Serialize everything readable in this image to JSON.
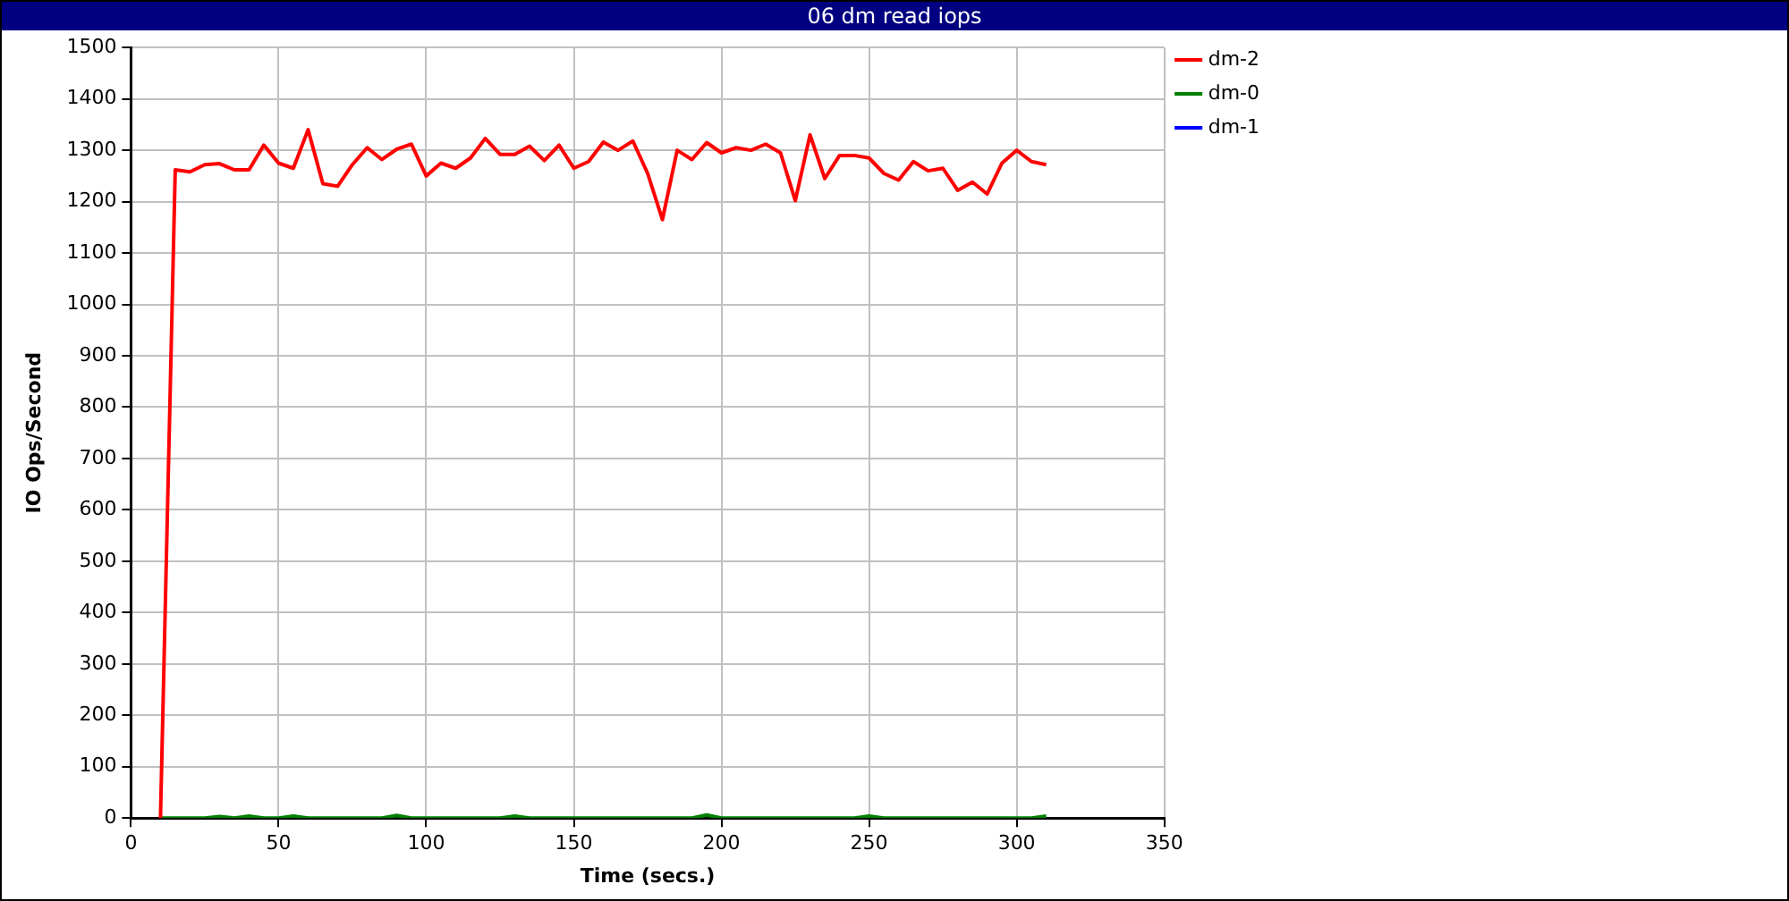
{
  "chart_data": {
    "type": "line",
    "title": "06 dm read iops",
    "xlabel": "Time (secs.)",
    "ylabel": "IO Ops/Second",
    "x": [
      10,
      15,
      20,
      25,
      30,
      35,
      40,
      45,
      50,
      55,
      60,
      65,
      70,
      75,
      80,
      85,
      90,
      95,
      100,
      105,
      110,
      115,
      120,
      125,
      130,
      135,
      140,
      145,
      150,
      155,
      160,
      165,
      170,
      175,
      180,
      185,
      190,
      195,
      200,
      205,
      210,
      215,
      220,
      225,
      230,
      235,
      240,
      245,
      250,
      255,
      260,
      265,
      270,
      275,
      280,
      285,
      290,
      295,
      300,
      305,
      310
    ],
    "series": [
      {
        "name": "dm-2",
        "color": "#ff0000",
        "values": [
          0,
          1262,
          1258,
          1272,
          1274,
          1262,
          1262,
          1310,
          1275,
          1265,
          1340,
          1235,
          1230,
          1272,
          1305,
          1282,
          1302,
          1312,
          1250,
          1275,
          1265,
          1285,
          1323,
          1292,
          1292,
          1308,
          1280,
          1310,
          1265,
          1278,
          1316,
          1300,
          1318,
          1255,
          1165,
          1300,
          1282,
          1315,
          1295,
          1305,
          1300,
          1312,
          1295,
          1202,
          1330,
          1245,
          1290,
          1290,
          1285,
          1255,
          1242,
          1278,
          1260,
          1265,
          1222,
          1238,
          1215,
          1275,
          1300,
          1278,
          1272
        ]
      },
      {
        "name": "dm-0",
        "color": "#008000",
        "values": [
          0,
          0,
          0,
          0,
          3,
          0,
          4,
          0,
          0,
          4,
          0,
          0,
          0,
          0,
          0,
          0,
          5,
          0,
          0,
          0,
          0,
          0,
          0,
          0,
          4,
          0,
          0,
          0,
          0,
          0,
          0,
          0,
          0,
          0,
          0,
          0,
          0,
          6,
          0,
          0,
          0,
          0,
          0,
          0,
          0,
          0,
          0,
          0,
          4,
          0,
          0,
          0,
          0,
          0,
          0,
          0,
          0,
          0,
          0,
          0,
          4
        ]
      },
      {
        "name": "dm-1",
        "color": "#0000ff",
        "values": [
          null,
          null,
          null,
          null,
          null,
          null,
          null,
          null,
          null,
          null,
          null,
          null,
          null,
          null,
          null,
          null,
          null,
          null,
          null,
          null,
          null,
          null,
          null,
          null,
          null,
          null,
          null,
          null,
          null,
          null,
          null,
          null,
          null,
          null,
          null,
          null,
          null,
          null,
          null,
          null,
          null,
          null,
          null,
          null,
          null,
          null,
          null,
          null,
          null,
          null,
          null,
          null,
          null,
          null,
          null,
          null,
          null,
          null,
          null,
          null,
          null
        ]
      }
    ],
    "xlim": [
      0,
      350
    ],
    "xticks": [
      0,
      50,
      100,
      150,
      200,
      250,
      300,
      350
    ],
    "ylim": [
      0,
      1500
    ],
    "yticks": [
      0,
      100,
      200,
      300,
      400,
      500,
      600,
      700,
      800,
      900,
      1000,
      1100,
      1200,
      1300,
      1400,
      1500
    ],
    "grid": true,
    "legend": "top right",
    "marker": "none",
    "line_style": "solid"
  }
}
